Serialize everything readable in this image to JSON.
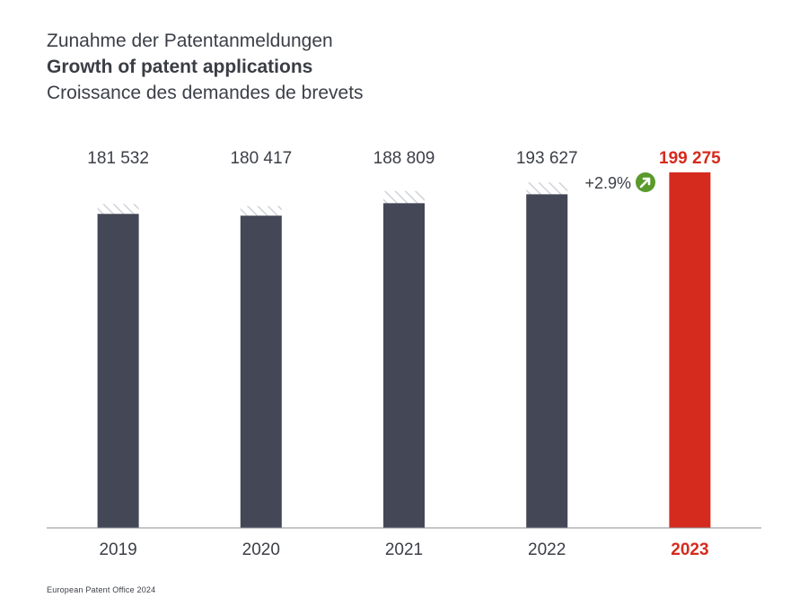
{
  "header": {
    "title_de": "Zunahme der Patentanmeldungen",
    "title_en": "Growth of patent applications",
    "title_fr": "Croissance des demandes de brevets"
  },
  "growth": {
    "label": "+2.9%",
    "icon": "arrow-up-right-icon",
    "color": "#5a9a2a"
  },
  "footer": {
    "source": "European Patent Office 2024"
  },
  "colors": {
    "bar": "#434756",
    "highlight": "#d52b1e",
    "hatch": "#cfd2d7",
    "axis": "#8a8d94"
  },
  "chart_data": {
    "type": "bar",
    "title": "Growth of patent applications",
    "categories": [
      "2019",
      "2020",
      "2021",
      "2022",
      "2023"
    ],
    "value_labels": [
      "181 532",
      "180 417",
      "188 809",
      "193 627",
      "199 275"
    ],
    "totals": [
      181532,
      180417,
      188809,
      193627,
      199275
    ],
    "solid_values": [
      176000,
      175000,
      182000,
      187000,
      199275
    ],
    "highlight_index": 4,
    "ylim": [
      0,
      199275
    ],
    "grid": false,
    "xlabel": "",
    "ylabel": ""
  }
}
